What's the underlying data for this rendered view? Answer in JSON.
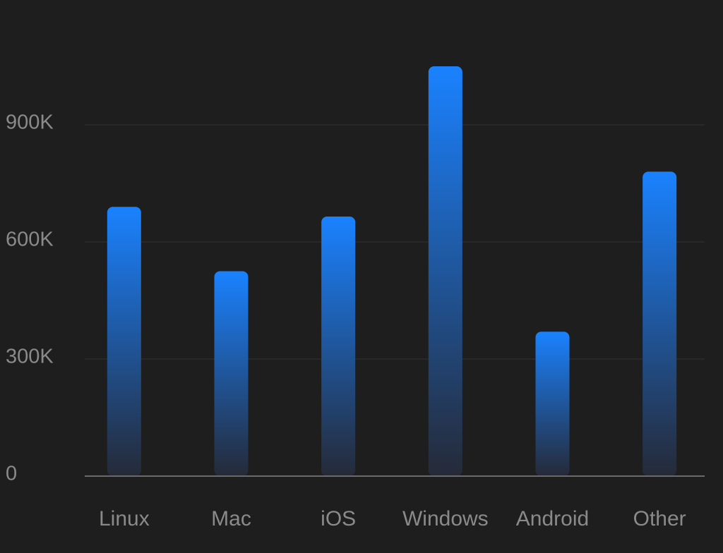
{
  "chart_data": {
    "type": "bar",
    "categories": [
      "Linux",
      "Mac",
      "iOS",
      "Windows",
      "Android",
      "Other"
    ],
    "values": [
      690000,
      525000,
      665000,
      1050000,
      370000,
      780000
    ],
    "color": "#1a82ff",
    "ylim": [
      0,
      1200000
    ],
    "yticks": [
      0,
      {
        "value": 300000,
        "label": "300K"
      },
      {
        "value": 600000,
        "label": "600K"
      },
      {
        "value": 900000,
        "label": "900K"
      }
    ],
    "grid": true
  }
}
